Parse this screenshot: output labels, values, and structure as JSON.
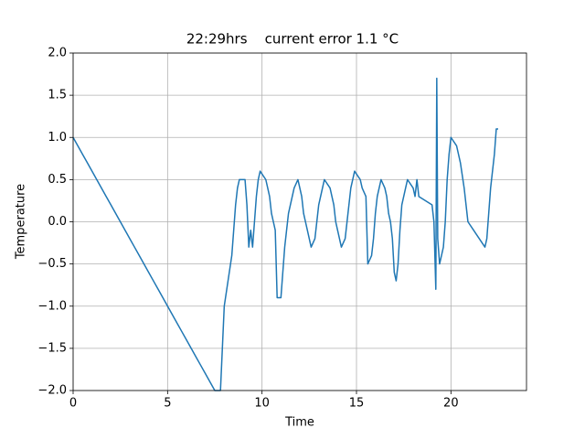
{
  "chart_data": {
    "type": "line",
    "title": "22:29hrs    current error 1.1 °C",
    "xlabel": "Time",
    "ylabel": "Temperature",
    "xlim": [
      0,
      24
    ],
    "ylim": [
      -2,
      2
    ],
    "xticks": [
      0,
      5,
      10,
      15,
      20
    ],
    "yticks": [
      {
        "value": -2,
        "label": "−2.0"
      },
      {
        "value": -1.5,
        "label": "−1.5"
      },
      {
        "value": -1,
        "label": "−1.0"
      },
      {
        "value": -0.5,
        "label": "−0.5"
      },
      {
        "value": 0,
        "label": "0.0"
      },
      {
        "value": 0.5,
        "label": "0.5"
      },
      {
        "value": 1,
        "label": "1.0"
      },
      {
        "value": 1.5,
        "label": "1.5"
      },
      {
        "value": 2,
        "label": "2.0"
      }
    ],
    "grid": true,
    "series": [
      {
        "color": "#1f77b4",
        "x": [
          0,
          0.25,
          0.5,
          0.75,
          1,
          1.25,
          1.5,
          1.75,
          2,
          2.25,
          2.5,
          2.75,
          3,
          3.25,
          3.5,
          3.75,
          4,
          4.25,
          4.5,
          4.75,
          5,
          5.25,
          5.5,
          5.75,
          6,
          6.25,
          6.5,
          6.75,
          7,
          7.25,
          7.5,
          7.8,
          7.9,
          8.0,
          8.2,
          8.4,
          8.5,
          8.6,
          8.7,
          8.8,
          9.1,
          9.2,
          9.3,
          9.4,
          9.5,
          9.6,
          9.7,
          9.8,
          9.9,
          10.2,
          10.3,
          10.4,
          10.5,
          10.6,
          10.7,
          10.8,
          11.0,
          11.1,
          11.2,
          11.3,
          11.4,
          11.5,
          11.6,
          11.7,
          11.9,
          12.0,
          12.1,
          12.2,
          12.3,
          12.4,
          12.5,
          12.6,
          12.8,
          12.9,
          13.0,
          13.1,
          13.2,
          13.3,
          13.6,
          13.7,
          13.8,
          13.9,
          14.0,
          14.1,
          14.2,
          14.4,
          14.5,
          14.6,
          14.7,
          14.8,
          14.9,
          15.2,
          15.3,
          15.5,
          15.6,
          15.8,
          15.9,
          16.0,
          16.1,
          16.3,
          16.5,
          16.6,
          16.7,
          16.8,
          16.9,
          17.0,
          17.1,
          17.2,
          17.3,
          17.4,
          17.6,
          17.7,
          18.0,
          18.1,
          18.2,
          18.3,
          19.0,
          19.1,
          19.2,
          19.25,
          19.3,
          19.4,
          19.6,
          19.7,
          19.8,
          19.9,
          20.0,
          20.3,
          20.5,
          20.7,
          20.8,
          20.9,
          21.2,
          21.5,
          21.8,
          21.9,
          22.0,
          22.1,
          22.3,
          22.4,
          22.5
        ],
        "values": [
          1.0,
          0.9,
          0.8,
          0.7,
          0.6,
          0.5,
          0.4,
          0.3,
          0.2,
          0.1,
          0.0,
          -0.1,
          -0.2,
          -0.3,
          -0.4,
          -0.5,
          -0.6,
          -0.7,
          -0.8,
          -0.9,
          -1.0,
          -1.1,
          -1.2,
          -1.3,
          -1.4,
          -1.5,
          -1.6,
          -1.7,
          -1.8,
          -1.9,
          -2.0,
          -2.0,
          -1.5,
          -1.0,
          -0.7,
          -0.4,
          -0.1,
          0.2,
          0.4,
          0.5,
          0.5,
          0.2,
          -0.3,
          -0.1,
          -0.3,
          0.0,
          0.3,
          0.5,
          0.6,
          0.5,
          0.4,
          0.3,
          0.1,
          0.0,
          -0.1,
          -0.9,
          -0.9,
          -0.6,
          -0.3,
          -0.1,
          0.1,
          0.2,
          0.3,
          0.4,
          0.5,
          0.4,
          0.3,
          0.1,
          0.0,
          -0.1,
          -0.2,
          -0.3,
          -0.2,
          0.0,
          0.2,
          0.3,
          0.4,
          0.5,
          0.4,
          0.3,
          0.2,
          0.0,
          -0.1,
          -0.2,
          -0.3,
          -0.2,
          0.0,
          0.2,
          0.4,
          0.5,
          0.6,
          0.5,
          0.4,
          0.3,
          -0.5,
          -0.4,
          -0.2,
          0.1,
          0.3,
          0.5,
          0.4,
          0.3,
          0.1,
          0.0,
          -0.2,
          -0.6,
          -0.7,
          -0.5,
          -0.1,
          0.2,
          0.4,
          0.5,
          0.4,
          0.3,
          0.5,
          0.3,
          0.2,
          0.0,
          -0.8,
          1.7,
          -0.2,
          -0.5,
          -0.3,
          0.0,
          0.5,
          0.8,
          1.0,
          0.9,
          0.7,
          0.4,
          0.2,
          0.0,
          -0.1,
          -0.2,
          -0.3,
          -0.2,
          0.1,
          0.4,
          0.8,
          1.1,
          1.1
        ]
      }
    ]
  }
}
